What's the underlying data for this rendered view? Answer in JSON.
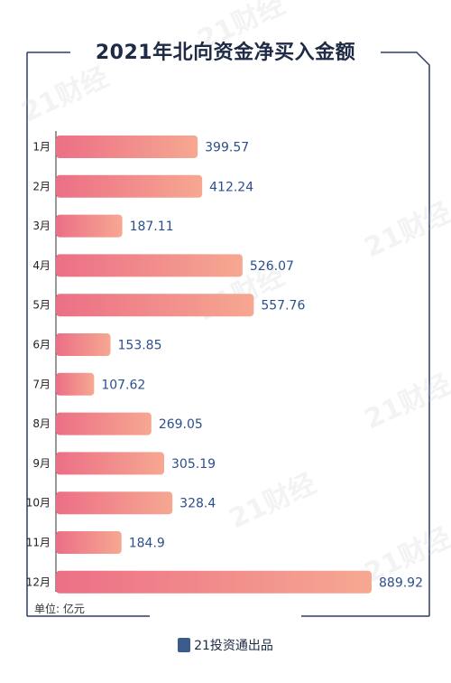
{
  "title": "2021年北向资金净买入金额",
  "unit_label": "单位: 亿元",
  "footer_text": "21投资通出品",
  "watermark_text": "21财经",
  "colors": {
    "bar_start": "#ec6f86",
    "bar_end": "#f6a891",
    "value_text": "#2b4f8c",
    "frame": "#2c3e66"
  },
  "chart_data": {
    "type": "bar",
    "orientation": "horizontal",
    "title": "2021年北向资金净买入金额",
    "unit": "亿元",
    "categories": [
      "1月",
      "2月",
      "3月",
      "4月",
      "5月",
      "6月",
      "7月",
      "8月",
      "9月",
      "10月",
      "11月",
      "12月"
    ],
    "values": [
      399.57,
      412.24,
      187.11,
      526.07,
      557.76,
      153.85,
      107.62,
      269.05,
      305.19,
      328.4,
      184.9,
      889.92
    ],
    "value_labels": [
      "399.57",
      "412.24",
      "187.11",
      "526.07",
      "557.76",
      "153.85",
      "107.62",
      "269.05",
      "305.19",
      "328.4",
      "184.9",
      "889.92"
    ],
    "xlim": [
      0,
      889.92
    ],
    "grid": false,
    "legend": "none"
  }
}
